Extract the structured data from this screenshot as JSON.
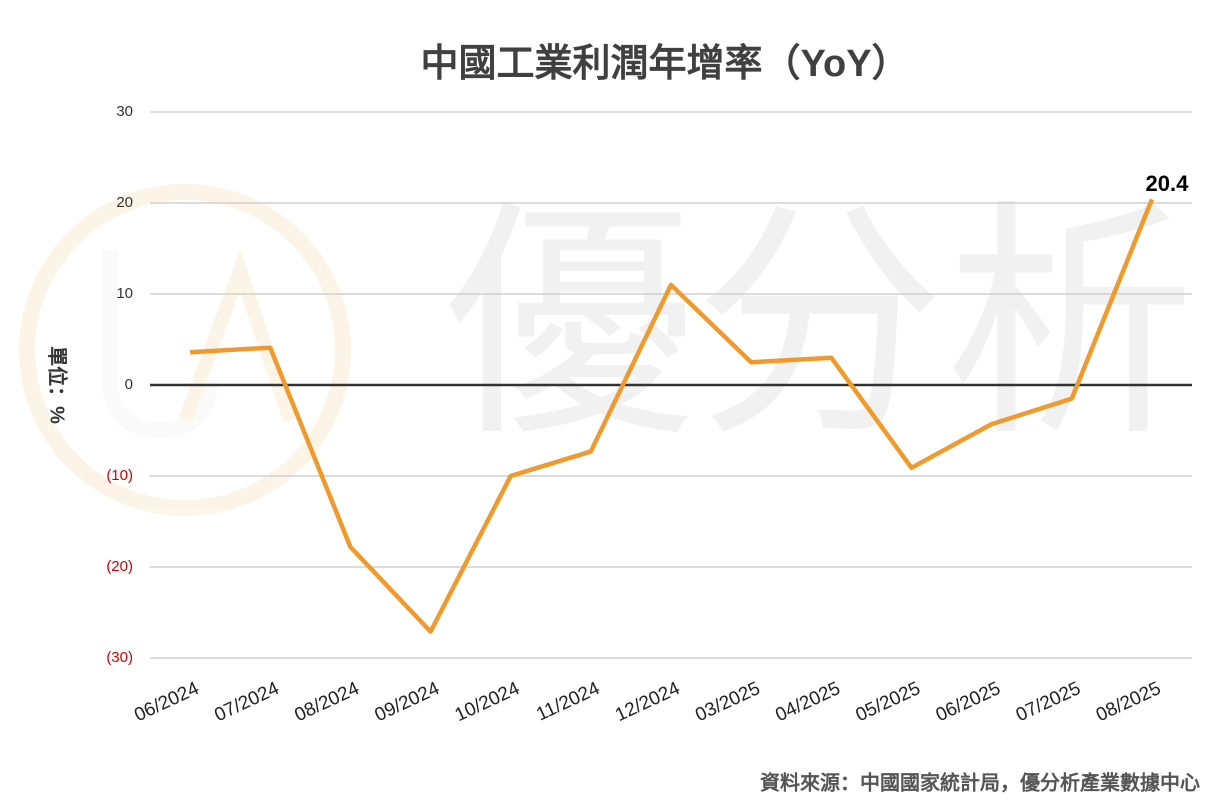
{
  "chart_data": {
    "type": "line",
    "title": "中國工業利潤年增率（YoY）",
    "y_label": "單位：%",
    "source": "資料來源：中國國家統計局，優分析產業數據中心",
    "watermark": "優分析",
    "categories": [
      "06/2024",
      "07/2024",
      "08/2024",
      "09/2024",
      "10/2024",
      "11/2024",
      "12/2024",
      "03/2025",
      "04/2025",
      "05/2025",
      "06/2025",
      "07/2025",
      "08/2025"
    ],
    "series": [
      {
        "name": "YoY",
        "color": "#f09a2e",
        "values": [
          3.6,
          4.1,
          -17.8,
          -27.1,
          -10.0,
          -7.3,
          11.0,
          2.5,
          3.0,
          -9.1,
          -4.3,
          -1.5,
          20.4
        ]
      }
    ],
    "ylim": [
      -30,
      30
    ],
    "yticks": [
      30,
      20,
      10,
      0,
      {
        "value": -10,
        "label": "(10)"
      },
      {
        "value": -20,
        "label": "(20)"
      },
      {
        "value": -30,
        "label": "(30)"
      }
    ],
    "grid": true
  }
}
